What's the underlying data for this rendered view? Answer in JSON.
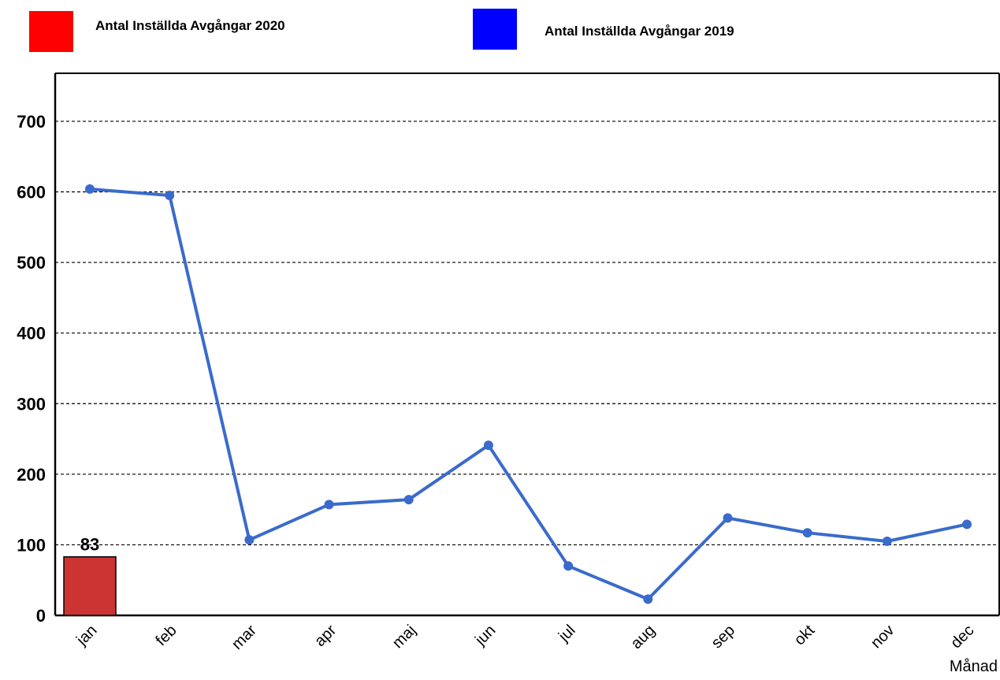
{
  "chart_data": {
    "type": "combo",
    "x_label": "Månad",
    "categories": [
      "jan",
      "feb",
      "mar",
      "apr",
      "maj",
      "jun",
      "jul",
      "aug",
      "sep",
      "okt",
      "nov",
      "dec"
    ],
    "series": [
      {
        "name": "Antal Inställda Avgångar 2020",
        "type": "bar",
        "color": "#cc3333",
        "legend_color": "#ff0000",
        "values": [
          83,
          null,
          null,
          null,
          null,
          null,
          null,
          null,
          null,
          null,
          null,
          null
        ]
      },
      {
        "name": "Antal Inställda Avgångar 2019",
        "type": "line",
        "color": "#3a6bcc",
        "legend_color": "#0000ff",
        "values": [
          604,
          595,
          107,
          157,
          164,
          241,
          70,
          23,
          138,
          117,
          105,
          129
        ]
      }
    ],
    "ylim": [
      0,
      768
    ],
    "yticks": [
      0,
      100,
      200,
      300,
      400,
      500,
      600,
      700
    ],
    "grid": true
  }
}
